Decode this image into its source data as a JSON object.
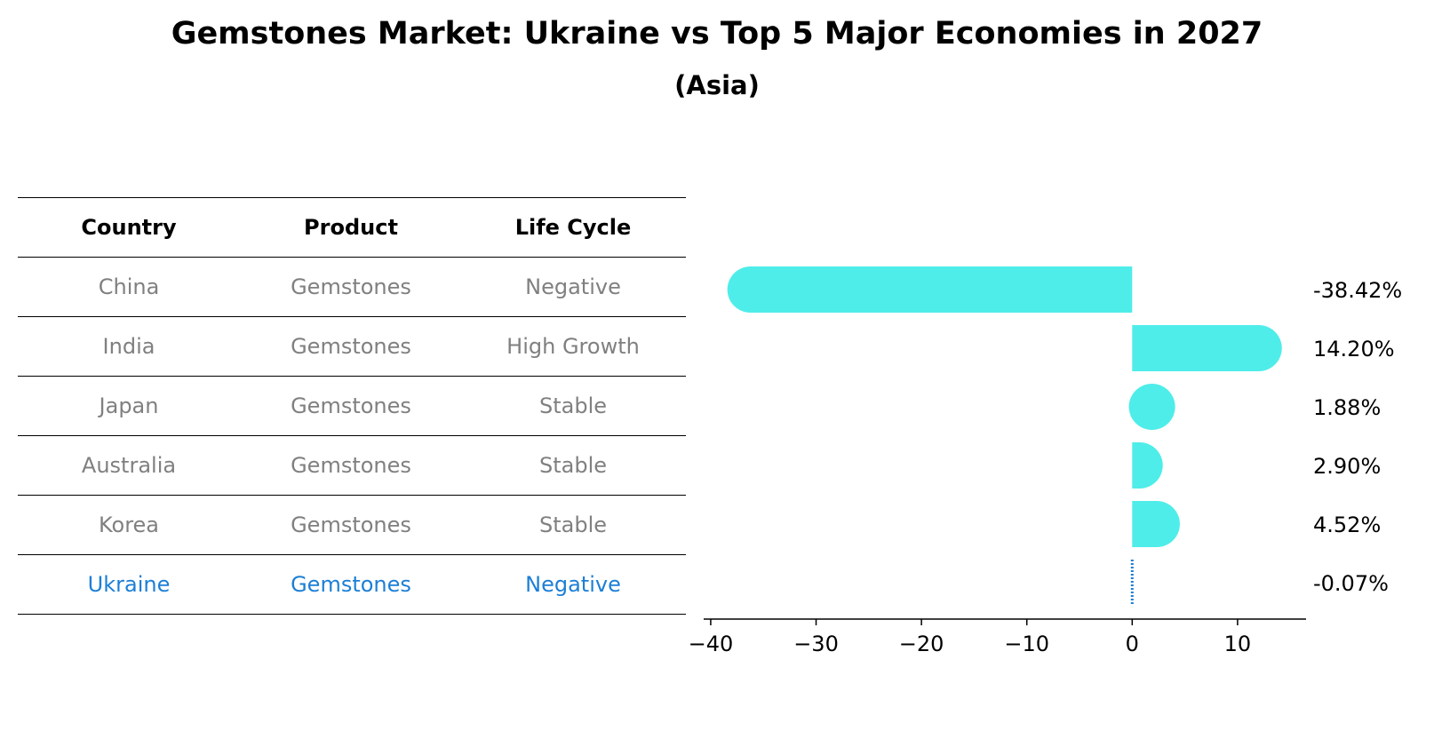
{
  "title": "Gemstones Market: Ukraine vs Top 5 Major Economies in 2027",
  "subtitle": "(Asia)",
  "table": {
    "headers": [
      "Country",
      "Product",
      "Life Cycle"
    ],
    "rows": [
      [
        "China",
        "Gemstones",
        "Negative"
      ],
      [
        "India",
        "Gemstones",
        "High Growth"
      ],
      [
        "Japan",
        "Gemstones",
        "Stable"
      ],
      [
        "Australia",
        "Gemstones",
        "Stable"
      ],
      [
        "Korea",
        "Gemstones",
        "Stable"
      ],
      [
        "Ukraine",
        "Gemstones",
        "Negative"
      ]
    ],
    "highlight_row": 5
  },
  "chart_data": {
    "type": "bar",
    "orientation": "horizontal",
    "categories": [
      "China",
      "India",
      "Japan",
      "Australia",
      "Korea",
      "Ukraine"
    ],
    "values": [
      -38.42,
      14.2,
      1.88,
      2.9,
      4.52,
      -0.07
    ],
    "value_labels": [
      "-38.42%",
      "14.20%",
      "1.88%",
      "2.90%",
      "4.52%",
      "-0.07%"
    ],
    "xticks": [
      -40,
      -30,
      -20,
      -10,
      0,
      10
    ],
    "xtick_labels": [
      "−40",
      "−30",
      "−20",
      "−10",
      "0",
      "10"
    ],
    "xlim": [
      -40.5,
      16.5
    ],
    "bar_color": "#4eede9",
    "highlight_color": "#1c7fd6",
    "highlight_index": 5
  }
}
